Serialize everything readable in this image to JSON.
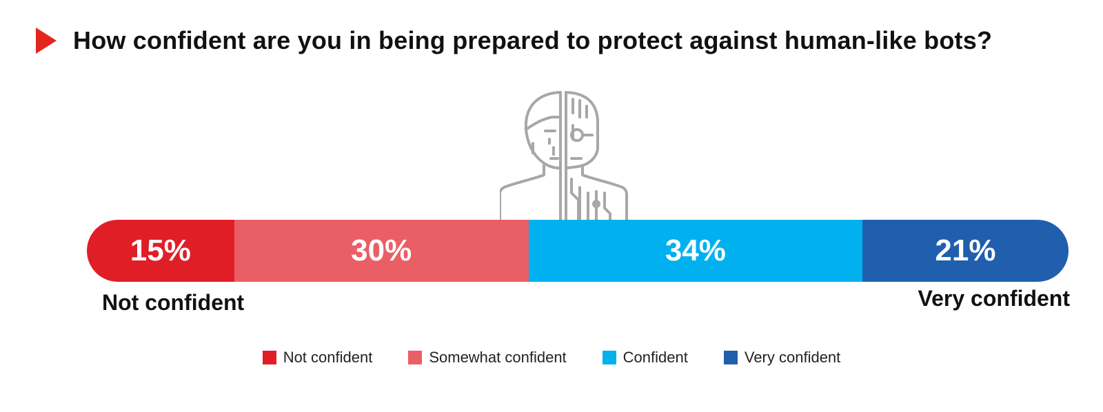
{
  "title": "How confident are you in being prepared to protect against human-like bots?",
  "icons": {
    "title_marker": "play-triangle-icon",
    "figure": "half-human-half-robot-icon"
  },
  "colors": {
    "marker": "#E3261D",
    "icon_stroke": "#A7A7A7",
    "text": "#111111"
  },
  "end_labels": {
    "left": "Not confident",
    "right": "Very confident"
  },
  "chart_data": {
    "type": "bar",
    "orientation": "horizontal-stacked-100",
    "categories": [
      "Not confident",
      "Somewhat confident",
      "Confident",
      "Very confident"
    ],
    "values": [
      15,
      30,
      34,
      21
    ],
    "labels": [
      "15%",
      "30%",
      "34%",
      "21%"
    ],
    "colors": [
      "#E01E26",
      "#EA5F66",
      "#00B0EF",
      "#1F5FAD"
    ],
    "legend": {
      "position": "bottom"
    },
    "grid": false
  }
}
